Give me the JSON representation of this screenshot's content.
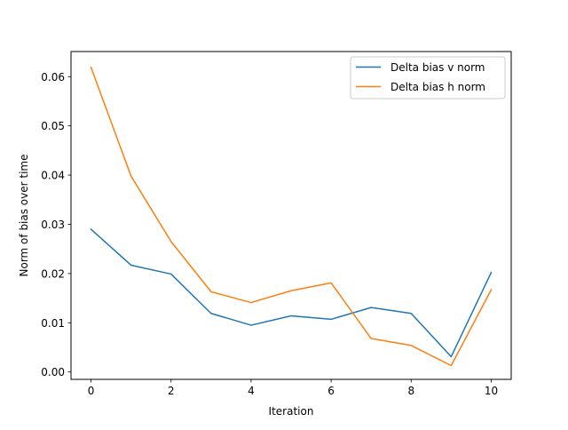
{
  "chart_data": {
    "type": "line",
    "title": "",
    "xlabel": "Iteration",
    "ylabel": "Norm of bias over time",
    "xlim": [
      -0.5,
      10.5
    ],
    "ylim": [
      -0.0015,
      0.0651
    ],
    "xticks": [
      0,
      2,
      4,
      6,
      8,
      10
    ],
    "xtick_labels": [
      "0",
      "2",
      "4",
      "6",
      "8",
      "10"
    ],
    "yticks": [
      0.0,
      0.01,
      0.02,
      0.03,
      0.04,
      0.05,
      0.06
    ],
    "ytick_labels": [
      "0.00",
      "0.01",
      "0.02",
      "0.03",
      "0.04",
      "0.05",
      "0.06"
    ],
    "grid": false,
    "legend_position": "top-right",
    "x": [
      0,
      1,
      2,
      3,
      4,
      5,
      6,
      7,
      8,
      9,
      10
    ],
    "series": [
      {
        "name": "Delta bias v norm",
        "color": "#1f77b4",
        "values": [
          0.029,
          0.0217,
          0.0199,
          0.0119,
          0.0095,
          0.0114,
          0.0107,
          0.0131,
          0.0119,
          0.0031,
          0.0202
        ]
      },
      {
        "name": "Delta bias h norm",
        "color": "#ff7f0e",
        "values": [
          0.0619,
          0.0398,
          0.0265,
          0.0163,
          0.0141,
          0.0165,
          0.0181,
          0.0068,
          0.0054,
          0.0013,
          0.0167
        ]
      }
    ]
  }
}
